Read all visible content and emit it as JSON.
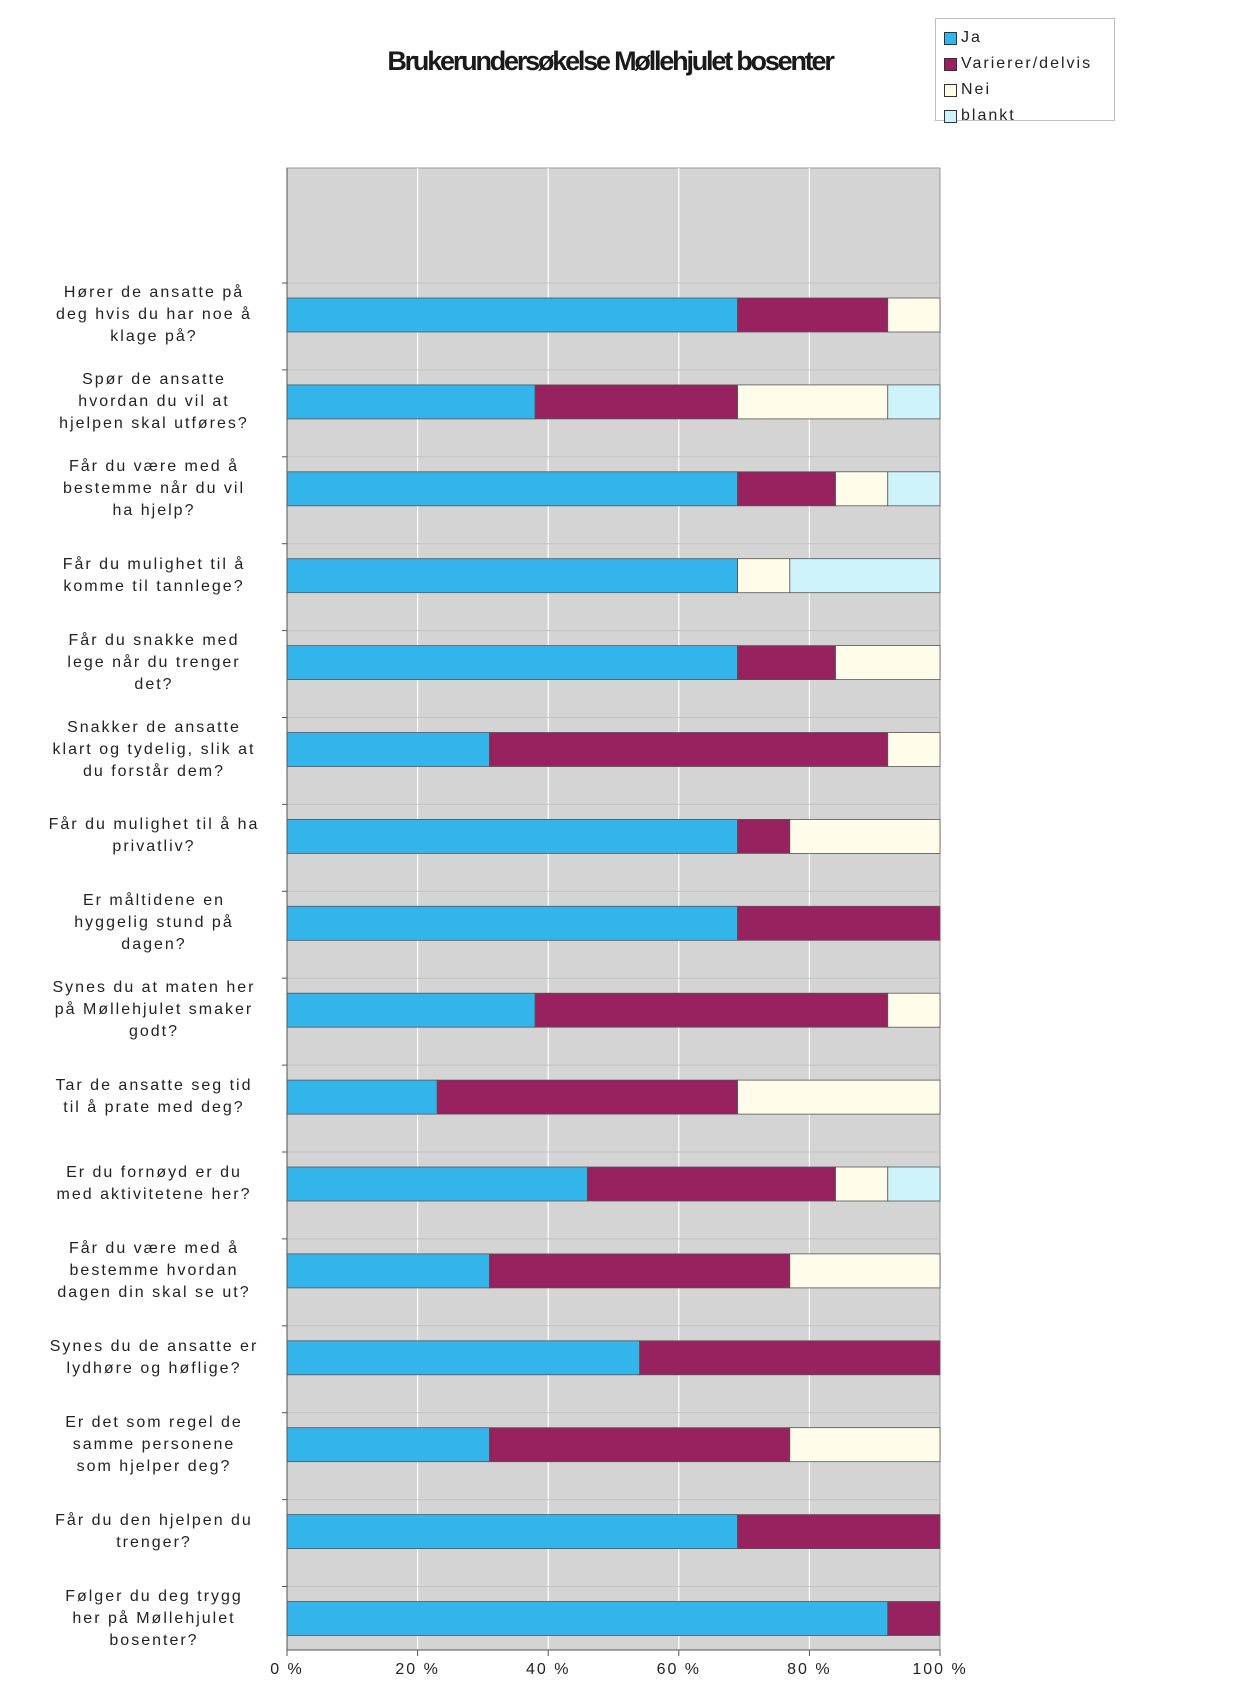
{
  "chart_data": {
    "type": "bar",
    "orientation": "horizontal",
    "stacked": "percent",
    "title": "Brukerundersøkelse Møllehjulet bosenter",
    "categories": [
      "Hører de ansatte på deg hvis du har noe å klage på?",
      "Spør de ansatte hvordan du vil at hjelpen skal utføres?",
      "Får du være med å bestemme når du vil ha hjelp?",
      "Får du mulighet til å komme til tannlege?",
      "Får du snakke med lege når du trenger det?",
      "Snakker de ansatte klart og tydelig, slik at du forstår dem?",
      "Får du mulighet til å ha privatliv?",
      "Er måltidene en hyggelig stund på dagen?",
      "Synes du at maten her på Møllehjulet smaker godt?",
      "Tar de ansatte seg tid til å prate med deg?",
      "Er du fornøyd er du med aktivitetene her?",
      "Får du være med å bestemme hvordan dagen din skal se ut?",
      "Synes du de ansatte er lydhøre og høflige?",
      "Er det som regel de samme personene som hjelper deg?",
      "Får du den hjelpen du trenger?",
      "Følger du deg trygg her på Møllehjulet bosenter?"
    ],
    "series": [
      {
        "name": "Ja",
        "color": "#33b4ea",
        "values": [
          69,
          38,
          69,
          69,
          69,
          31,
          69,
          69,
          38,
          23,
          46,
          31,
          54,
          31,
          69,
          92
        ]
      },
      {
        "name": "Varierer/delvis",
        "color": "#98215f",
        "values": [
          23,
          31,
          15,
          0,
          15,
          61,
          8,
          31,
          54,
          46,
          38,
          46,
          46,
          46,
          31,
          8
        ]
      },
      {
        "name": "Nei",
        "color": "#fffdea",
        "values": [
          8,
          23,
          8,
          8,
          16,
          8,
          23,
          0,
          8,
          31,
          8,
          23,
          0,
          23,
          0,
          0
        ]
      },
      {
        "name": "blankt",
        "color": "#cff3fa",
        "values": [
          0,
          8,
          8,
          23,
          0,
          0,
          0,
          0,
          0,
          0,
          8,
          0,
          0,
          0,
          0,
          0
        ]
      }
    ],
    "xlim": [
      0,
      100
    ],
    "xticks": [
      "0 %",
      "20 %",
      "40 %",
      "60 %",
      "80 %",
      "100 %"
    ],
    "grid": true,
    "legend_position": "top-right",
    "plot_background": "#d4d4d4",
    "grid_color": "#ffffff"
  },
  "labels": [
    [
      "Hører de ansatte på",
      "deg hvis du har noe å",
      "klage på?"
    ],
    [
      "Spør de ansatte",
      "hvordan du vil at",
      "hjelpen skal utføres?"
    ],
    [
      "Får du være med å",
      "bestemme når du vil",
      "ha hjelp?"
    ],
    [
      "Får du mulighet til å",
      "komme til tannlege?"
    ],
    [
      "Får du snakke med",
      "lege når du trenger",
      "det?"
    ],
    [
      "Snakker de ansatte",
      "klart og tydelig, slik at",
      "du forstår dem?"
    ],
    [
      "Får du mulighet til å ha",
      "privatliv?"
    ],
    [
      "Er måltidene en",
      "hyggelig stund på",
      "dagen?"
    ],
    [
      "Synes du at maten her",
      "på Møllehjulet smaker",
      "godt?"
    ],
    [
      "Tar de ansatte seg tid",
      "til å prate med deg?"
    ],
    [
      "Er du fornøyd er du",
      "med aktivitetene her?"
    ],
    [
      "Får du være med å",
      "bestemme hvordan",
      "dagen din skal se ut?"
    ],
    [
      "Synes du de ansatte er",
      "lydhøre og høflige?"
    ],
    [
      "Er det som regel de",
      "samme personene",
      "som hjelper deg?"
    ],
    [
      "Får du den hjelpen du",
      "trenger?"
    ],
    [
      "Følger du deg trygg",
      "her på Møllehjulet",
      "bosenter?"
    ]
  ]
}
